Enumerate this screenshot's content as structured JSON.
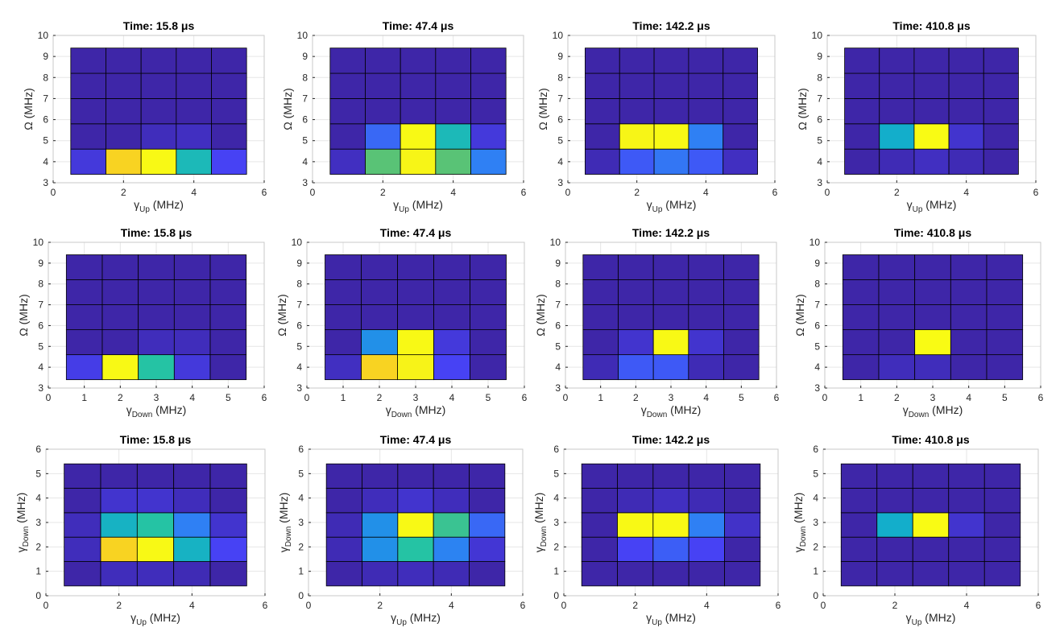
{
  "figure": {
    "colormap": [
      "#3e26a8",
      "#4743f7",
      "#2f80f4",
      "#0fa9d5",
      "#25c3a4",
      "#a8c331",
      "#fbb42c",
      "#f5ec1b",
      "#f9fb14"
    ],
    "grid_color": "#000000"
  },
  "chart_data": [
    {
      "type": "heatmap",
      "title": "Time: 15.8 μs",
      "xlabel": "γ",
      "xlabel_sub": "Up",
      "xlabel_unit": " (MHz)",
      "ylabel": "Ω (MHz)",
      "ylabel_sub": "",
      "ylabel_unit": "",
      "xlim": [
        0,
        6
      ],
      "ylim": [
        3,
        10
      ],
      "xticks": [
        "0",
        "2",
        "4",
        "6"
      ],
      "yticks": [
        "3",
        "4",
        "5",
        "6",
        "7",
        "8",
        "9",
        "10"
      ],
      "x_edges": [
        0.5,
        1.5,
        2.5,
        3.5,
        4.5,
        5.5
      ],
      "y_edges": [
        3.4,
        4.6,
        5.8,
        7,
        8.2,
        9.4
      ],
      "values": [
        [
          0.08,
          0.82,
          0.98,
          0.45,
          0.12
        ],
        [
          0,
          0,
          0.03,
          0.04,
          0
        ],
        [
          0,
          0,
          0,
          0,
          0
        ],
        [
          0,
          0,
          0,
          0,
          0
        ],
        [
          0,
          0,
          0,
          0,
          0
        ]
      ]
    },
    {
      "type": "heatmap",
      "title": "Time: 47.4 μs",
      "xlabel": "γ",
      "xlabel_sub": "Up",
      "xlabel_unit": " (MHz)",
      "ylabel": "Ω (MHz)",
      "ylabel_sub": "",
      "ylabel_unit": "",
      "xlim": [
        0,
        6
      ],
      "ylim": [
        3,
        10
      ],
      "xticks": [
        "0",
        "2",
        "4",
        "6"
      ],
      "yticks": [
        "3",
        "4",
        "5",
        "6",
        "7",
        "8",
        "9",
        "10"
      ],
      "x_edges": [
        0.5,
        1.5,
        2.5,
        3.5,
        4.5,
        5.5
      ],
      "y_edges": [
        3.4,
        4.6,
        5.8,
        7,
        8.2,
        9.4
      ],
      "values": [
        [
          0.04,
          0.55,
          0.95,
          0.55,
          0.25
        ],
        [
          0,
          0.2,
          0.98,
          0.45,
          0.08
        ],
        [
          0,
          0,
          0,
          0,
          0
        ],
        [
          0,
          0,
          0,
          0,
          0
        ],
        [
          0,
          0,
          0,
          0,
          0
        ]
      ]
    },
    {
      "type": "heatmap",
      "title": "Time: 142.2 μs",
      "xlabel": "γ",
      "xlabel_sub": "Up",
      "xlabel_unit": " (MHz)",
      "ylabel": "Ω (MHz)",
      "ylabel_sub": "",
      "ylabel_unit": "",
      "xlim": [
        0,
        6
      ],
      "ylim": [
        3,
        10
      ],
      "xticks": [
        "0",
        "2",
        "4",
        "6"
      ],
      "yticks": [
        "3",
        "4",
        "5",
        "6",
        "7",
        "8",
        "9",
        "10"
      ],
      "x_edges": [
        0.5,
        1.5,
        2.5,
        3.5,
        4.5,
        5.5
      ],
      "y_edges": [
        3.4,
        4.6,
        5.8,
        7,
        8.2,
        9.4
      ],
      "values": [
        [
          0.02,
          0.17,
          0.23,
          0.17,
          0.04
        ],
        [
          0,
          0.95,
          0.98,
          0.25,
          0
        ],
        [
          0,
          0,
          0,
          0,
          0
        ],
        [
          0,
          0,
          0,
          0,
          0
        ],
        [
          0,
          0,
          0,
          0,
          0
        ]
      ]
    },
    {
      "type": "heatmap",
      "title": "Time: 410.8 μs",
      "xlabel": "γ",
      "xlabel_sub": "Up",
      "xlabel_unit": " (MHz)",
      "ylabel": "Ω (MHz)",
      "ylabel_sub": "",
      "ylabel_unit": "",
      "xlim": [
        0,
        6
      ],
      "ylim": [
        3,
        10
      ],
      "xticks": [
        "0",
        "2",
        "4",
        "6"
      ],
      "yticks": [
        "3",
        "4",
        "5",
        "6",
        "7",
        "8",
        "9",
        "10"
      ],
      "x_edges": [
        0.5,
        1.5,
        2.5,
        3.5,
        4.5,
        5.5
      ],
      "y_edges": [
        3.4,
        4.6,
        5.8,
        7,
        8.2,
        9.4
      ],
      "values": [
        [
          0,
          0.02,
          0.04,
          0.02,
          0
        ],
        [
          0,
          0.4,
          1,
          0.06,
          0
        ],
        [
          0,
          0,
          0,
          0,
          0
        ],
        [
          0,
          0,
          0,
          0,
          0
        ],
        [
          0,
          0,
          0,
          0,
          0
        ]
      ]
    },
    {
      "type": "heatmap",
      "title": "Time: 15.8 μs",
      "xlabel": "γ",
      "xlabel_sub": "Down",
      "xlabel_unit": " (MHz)",
      "ylabel": "Ω (MHz)",
      "ylabel_sub": "",
      "ylabel_unit": "",
      "xlim": [
        0,
        6
      ],
      "ylim": [
        3,
        10
      ],
      "xticks": [
        "0",
        "1",
        "2",
        "3",
        "4",
        "5",
        "6"
      ],
      "yticks": [
        "3",
        "4",
        "5",
        "6",
        "7",
        "8",
        "9",
        "10"
      ],
      "x_edges": [
        0.5,
        1.5,
        2.5,
        3.5,
        4.5,
        5.5
      ],
      "y_edges": [
        3.4,
        4.6,
        5.8,
        7,
        8.2,
        9.4
      ],
      "values": [
        [
          0.1,
          0.98,
          0.5,
          0.08,
          0
        ],
        [
          0,
          0,
          0.03,
          0.03,
          0
        ],
        [
          0,
          0,
          0,
          0,
          0
        ],
        [
          0,
          0,
          0,
          0,
          0
        ],
        [
          0,
          0,
          0,
          0,
          0
        ]
      ]
    },
    {
      "type": "heatmap",
      "title": "Time: 47.4 μs",
      "xlabel": "γ",
      "xlabel_sub": "Down",
      "xlabel_unit": " (MHz)",
      "ylabel": "Ω (MHz)",
      "ylabel_sub": "",
      "ylabel_unit": "",
      "xlim": [
        0,
        6
      ],
      "ylim": [
        3,
        10
      ],
      "xticks": [
        "0",
        "1",
        "2",
        "3",
        "4",
        "5",
        "6"
      ],
      "yticks": [
        "3",
        "4",
        "5",
        "6",
        "7",
        "8",
        "9",
        "10"
      ],
      "x_edges": [
        0.5,
        1.5,
        2.5,
        3.5,
        4.5,
        5.5
      ],
      "y_edges": [
        3.4,
        4.6,
        5.8,
        7,
        8.2,
        9.4
      ],
      "values": [
        [
          0.04,
          0.82,
          0.93,
          0.12,
          0
        ],
        [
          0,
          0.3,
          0.98,
          0.08,
          0
        ],
        [
          0,
          0,
          0,
          0,
          0
        ],
        [
          0,
          0,
          0,
          0,
          0
        ],
        [
          0,
          0,
          0,
          0,
          0
        ]
      ]
    },
    {
      "type": "heatmap",
      "title": "Time: 142.2 μs",
      "xlabel": "γ",
      "xlabel_sub": "Down",
      "xlabel_unit": " (MHz)",
      "ylabel": "Ω (MHz)",
      "ylabel_sub": "",
      "ylabel_unit": "",
      "xlim": [
        0,
        6
      ],
      "ylim": [
        3,
        10
      ],
      "xticks": [
        "0",
        "1",
        "2",
        "3",
        "4",
        "5",
        "6"
      ],
      "yticks": [
        "3",
        "4",
        "5",
        "6",
        "7",
        "8",
        "9",
        "10"
      ],
      "x_edges": [
        0.5,
        1.5,
        2.5,
        3.5,
        4.5,
        5.5
      ],
      "y_edges": [
        3.4,
        4.6,
        5.8,
        7,
        8.2,
        9.4
      ],
      "values": [
        [
          0.02,
          0.17,
          0.17,
          0.02,
          0
        ],
        [
          0,
          0.06,
          0.98,
          0.06,
          0
        ],
        [
          0,
          0,
          0,
          0,
          0
        ],
        [
          0,
          0,
          0,
          0,
          0
        ],
        [
          0,
          0,
          0,
          0,
          0
        ]
      ]
    },
    {
      "type": "heatmap",
      "title": "Time: 410.8 μs",
      "xlabel": "γ",
      "xlabel_sub": "Down",
      "xlabel_unit": " (MHz)",
      "ylabel": "Ω (MHz)",
      "ylabel_sub": "",
      "ylabel_unit": "",
      "xlim": [
        0,
        6
      ],
      "ylim": [
        3,
        10
      ],
      "xticks": [
        "0",
        "1",
        "2",
        "3",
        "4",
        "5",
        "6"
      ],
      "yticks": [
        "3",
        "4",
        "5",
        "6",
        "7",
        "8",
        "9",
        "10"
      ],
      "x_edges": [
        0.5,
        1.5,
        2.5,
        3.5,
        4.5,
        5.5
      ],
      "y_edges": [
        3.4,
        4.6,
        5.8,
        7,
        8.2,
        9.4
      ],
      "values": [
        [
          0,
          0.03,
          0.03,
          0,
          0
        ],
        [
          0,
          0,
          1,
          0,
          0
        ],
        [
          0,
          0,
          0,
          0,
          0
        ],
        [
          0,
          0,
          0,
          0,
          0
        ],
        [
          0,
          0,
          0,
          0,
          0
        ]
      ]
    },
    {
      "type": "heatmap",
      "title": "Time: 15.8 μs",
      "xlabel": "γ",
      "xlabel_sub": "Up",
      "xlabel_unit": " (MHz)",
      "ylabel": "γ",
      "ylabel_sub": "Down",
      "ylabel_unit": " (MHz)",
      "xlim": [
        0,
        6
      ],
      "ylim": [
        0,
        6
      ],
      "xticks": [
        "0",
        "2",
        "4",
        "6"
      ],
      "yticks": [
        "0",
        "1",
        "2",
        "3",
        "4",
        "5",
        "6"
      ],
      "x_edges": [
        0.5,
        1.5,
        2.5,
        3.5,
        4.5,
        5.5
      ],
      "y_edges": [
        0.4,
        1.4,
        2.4,
        3.4,
        4.4,
        5.4
      ],
      "values": [
        [
          0,
          0.03,
          0.03,
          0.02,
          0
        ],
        [
          0.03,
          0.82,
          0.98,
          0.42,
          0.12
        ],
        [
          0.03,
          0.42,
          0.5,
          0.25,
          0.06
        ],
        [
          0,
          0.06,
          0.06,
          0.03,
          0
        ],
        [
          0,
          0,
          0,
          0,
          0
        ]
      ]
    },
    {
      "type": "heatmap",
      "title": "Time: 47.4 μs",
      "xlabel": "γ",
      "xlabel_sub": "Up",
      "xlabel_unit": " (MHz)",
      "ylabel": "γ",
      "ylabel_sub": "Down",
      "ylabel_unit": " (MHz)",
      "xlim": [
        0,
        6
      ],
      "ylim": [
        0,
        6
      ],
      "xticks": [
        "0",
        "2",
        "4",
        "6"
      ],
      "yticks": [
        "0",
        "1",
        "2",
        "3",
        "4",
        "5",
        "6"
      ],
      "x_edges": [
        0.5,
        1.5,
        2.5,
        3.5,
        4.5,
        5.5
      ],
      "y_edges": [
        0.4,
        1.4,
        2.4,
        3.4,
        4.4,
        5.4
      ],
      "values": [
        [
          0,
          0.02,
          0.03,
          0.02,
          0
        ],
        [
          0.02,
          0.3,
          0.5,
          0.26,
          0.07
        ],
        [
          0.02,
          0.3,
          0.98,
          0.52,
          0.2
        ],
        [
          0,
          0.03,
          0.06,
          0.03,
          0
        ],
        [
          0,
          0,
          0,
          0,
          0
        ]
      ]
    },
    {
      "type": "heatmap",
      "title": "Time: 142.2 μs",
      "xlabel": "γ",
      "xlabel_sub": "Up",
      "xlabel_unit": " (MHz)",
      "ylabel": "γ",
      "ylabel_sub": "Down",
      "ylabel_unit": " (MHz)",
      "xlim": [
        0,
        6
      ],
      "ylim": [
        0,
        6
      ],
      "xticks": [
        "0",
        "2",
        "4",
        "6"
      ],
      "yticks": [
        "0",
        "1",
        "2",
        "3",
        "4",
        "5",
        "6"
      ],
      "x_edges": [
        0.5,
        1.5,
        2.5,
        3.5,
        4.5,
        5.5
      ],
      "y_edges": [
        0.4,
        1.4,
        2.4,
        3.4,
        4.4,
        5.4
      ],
      "values": [
        [
          0,
          0,
          0,
          0,
          0
        ],
        [
          0,
          0.12,
          0.18,
          0.12,
          0
        ],
        [
          0,
          0.98,
          0.98,
          0.25,
          0.05
        ],
        [
          0,
          0.02,
          0.04,
          0.02,
          0
        ],
        [
          0,
          0,
          0,
          0,
          0
        ]
      ]
    },
    {
      "type": "heatmap",
      "title": "Time: 410.8 μs",
      "xlabel": "γ",
      "xlabel_sub": "Up",
      "xlabel_unit": " (MHz)",
      "ylabel": "γ",
      "ylabel_sub": "Down",
      "ylabel_unit": " (MHz)",
      "xlim": [
        0,
        6
      ],
      "ylim": [
        0,
        6
      ],
      "xticks": [
        "0",
        "2",
        "4",
        "6"
      ],
      "yticks": [
        "0",
        "1",
        "2",
        "3",
        "4",
        "5",
        "6"
      ],
      "x_edges": [
        0.5,
        1.5,
        2.5,
        3.5,
        4.5,
        5.5
      ],
      "y_edges": [
        0.4,
        1.4,
        2.4,
        3.4,
        4.4,
        5.4
      ],
      "values": [
        [
          0,
          0,
          0,
          0,
          0
        ],
        [
          0,
          0,
          0,
          0,
          0
        ],
        [
          0,
          0.4,
          1,
          0.06,
          0
        ],
        [
          0,
          0,
          0,
          0,
          0
        ],
        [
          0,
          0,
          0,
          0,
          0
        ]
      ]
    }
  ]
}
